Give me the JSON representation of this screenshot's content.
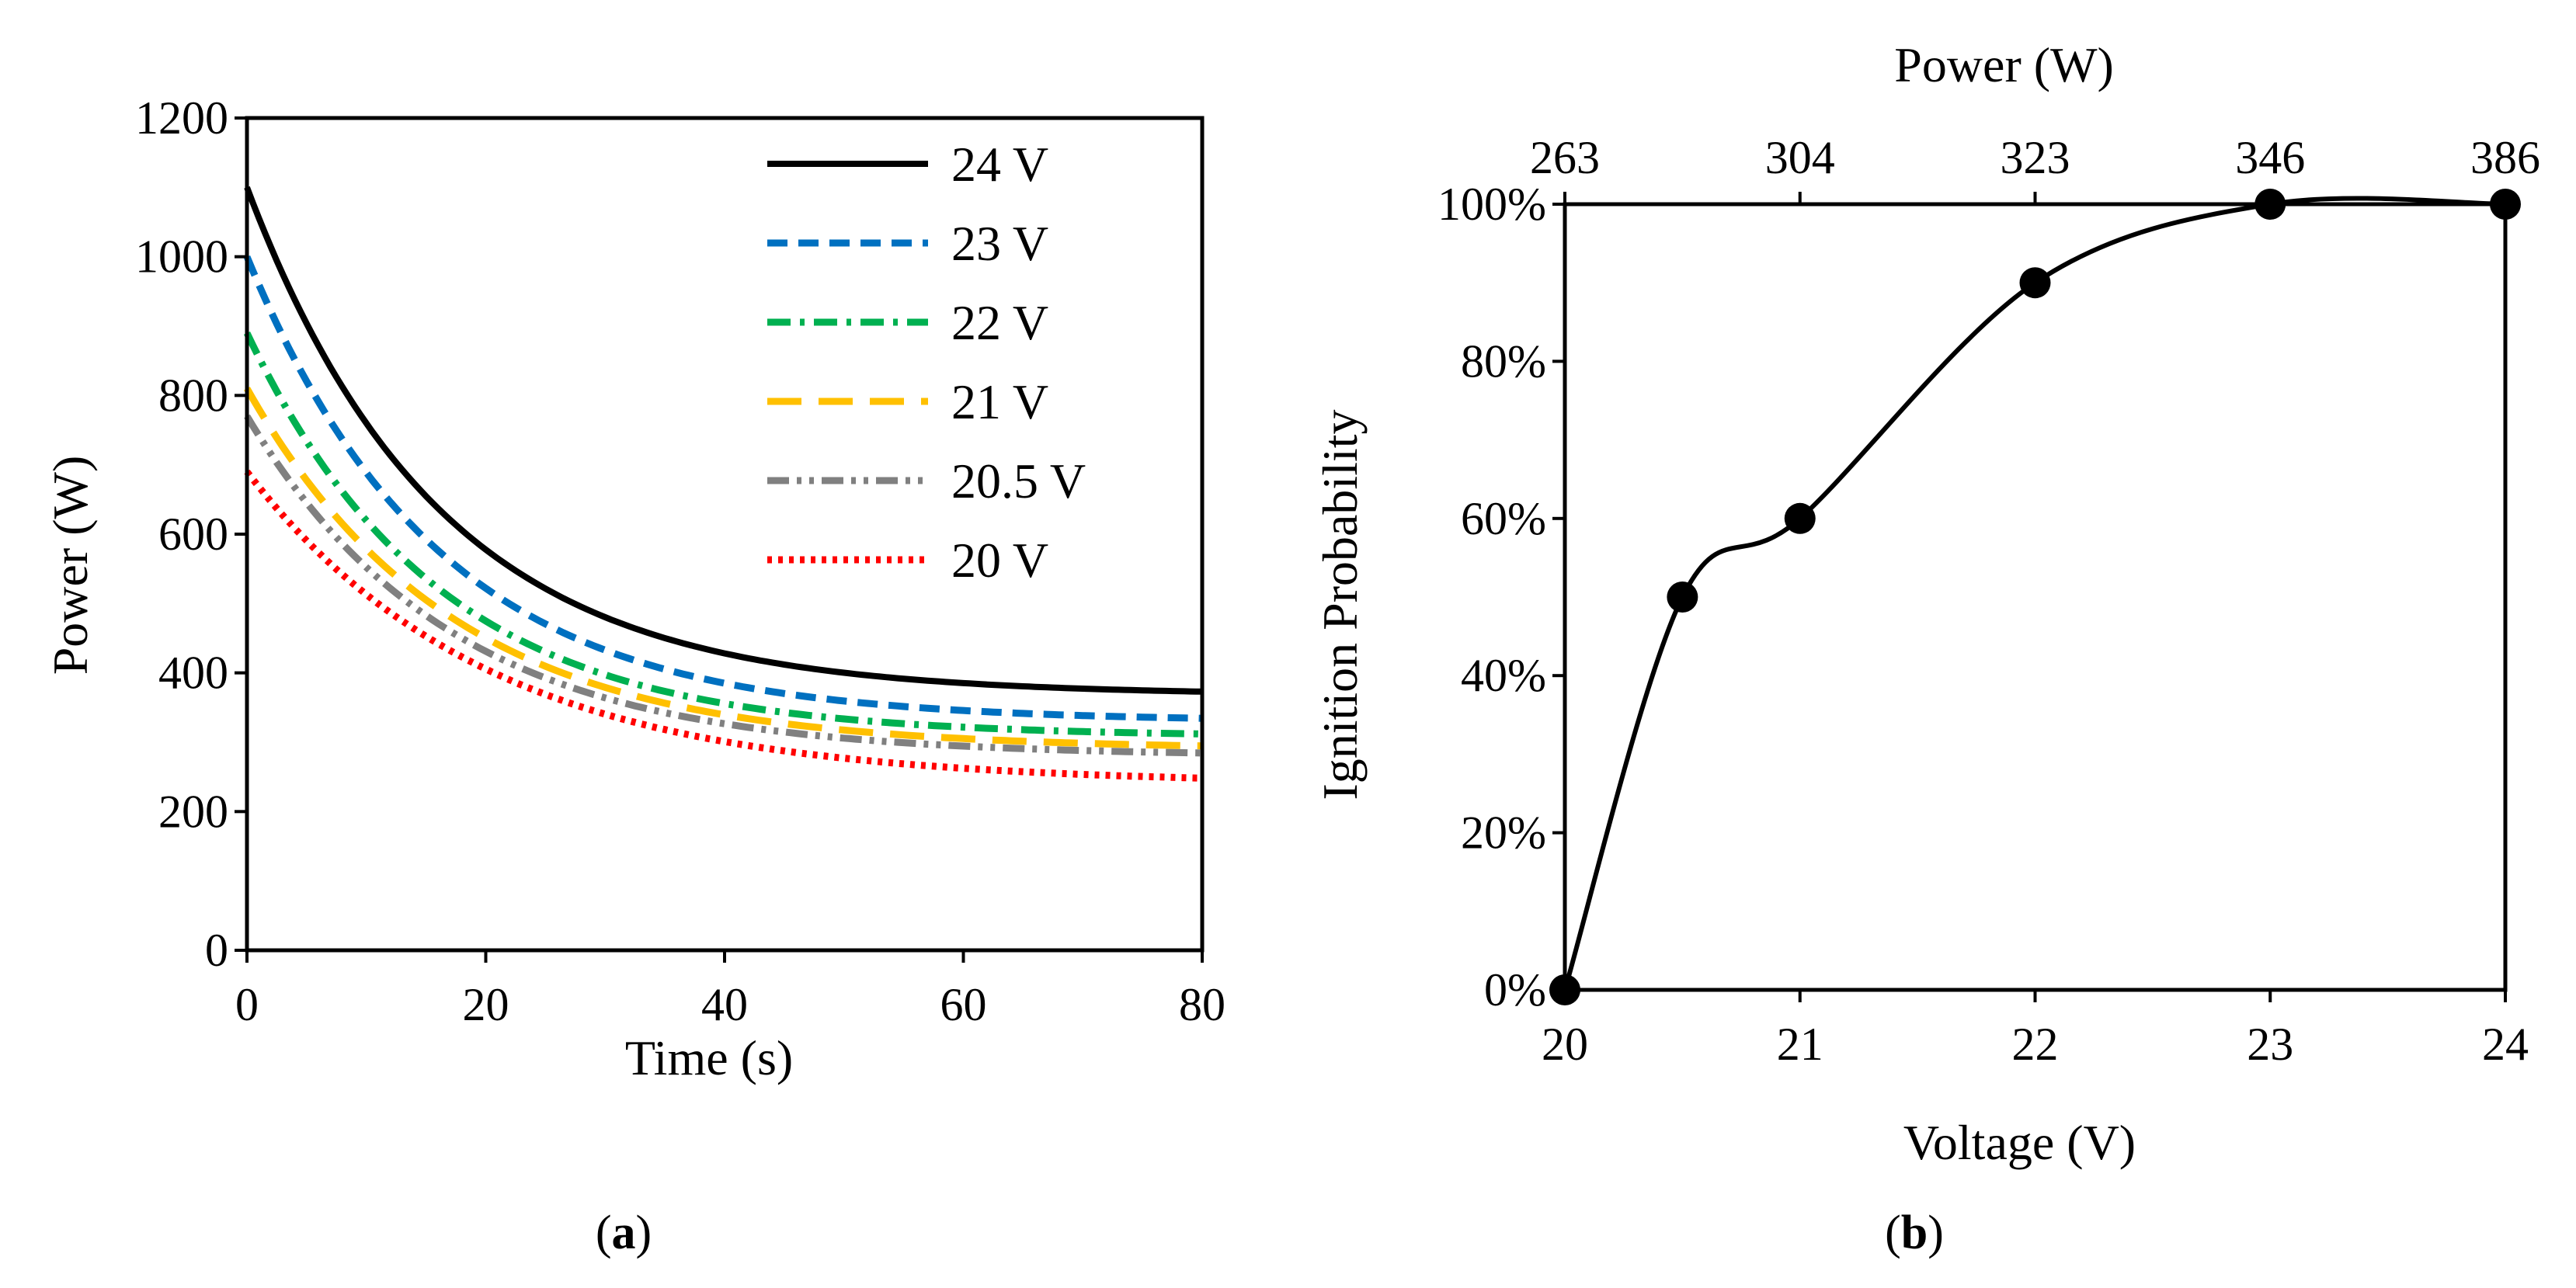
{
  "chart_data": [
    {
      "panel": "a",
      "type": "line",
      "caption": {
        "open": "(",
        "letter": "a",
        "close": ")"
      },
      "xlabel": "Time (s)",
      "ylabel": "Power  (W)",
      "xlim": [
        0,
        80
      ],
      "ylim": [
        0,
        1200
      ],
      "xticks": [
        0,
        20,
        40,
        60,
        80
      ],
      "yticks": [
        0,
        200,
        400,
        600,
        800,
        1000,
        1200
      ],
      "grid": false,
      "legend_position": "top-right",
      "model": "P(t) = Pinf + (P0 - Pinf) * exp(-t / tau)",
      "series": [
        {
          "name": "24 V",
          "color": "#000000",
          "style": "solid",
          "P0": 1100,
          "Pinf": 368,
          "tau": 16
        },
        {
          "name": "23 V",
          "color": "#0070C0",
          "style": "dash",
          "P0": 1000,
          "Pinf": 330,
          "tau": 16
        },
        {
          "name": "22 V",
          "color": "#00B050",
          "style": "dashdot",
          "P0": 890,
          "Pinf": 308,
          "tau": 16
        },
        {
          "name": "21 V",
          "color": "#FFC000",
          "style": "longdash",
          "P0": 810,
          "Pinf": 290,
          "tau": 17
        },
        {
          "name": "20.5 V",
          "color": "#808080",
          "style": "dashdotdot",
          "P0": 770,
          "Pinf": 280,
          "tau": 17
        },
        {
          "name": "20 V",
          "color": "#FF0000",
          "style": "dot",
          "P0": 690,
          "Pinf": 240,
          "tau": 20
        }
      ]
    },
    {
      "panel": "b",
      "type": "scatter",
      "caption": {
        "open": "(",
        "letter": "b",
        "close": ")"
      },
      "xlabel": "Voltage (V)",
      "ylabel": "Ignition Probability",
      "x2label": "Power (W)",
      "xlim": [
        20,
        24
      ],
      "ylim": [
        0,
        1
      ],
      "xticks": [
        20,
        21,
        22,
        23,
        24
      ],
      "yticks": [
        "0%",
        "20%",
        "40%",
        "60%",
        "80%",
        "100%"
      ],
      "x2ticks": [
        {
          "at": 20,
          "label": "263"
        },
        {
          "at": 21,
          "label": "304"
        },
        {
          "at": 22,
          "label": "323"
        },
        {
          "at": 23,
          "label": "346"
        },
        {
          "at": 24,
          "label": "386"
        }
      ],
      "grid": false,
      "series": [
        {
          "color": "#000000",
          "points": [
            {
              "x": 20,
              "y": 0.0
            },
            {
              "x": 20.5,
              "y": 0.5
            },
            {
              "x": 21,
              "y": 0.6
            },
            {
              "x": 22,
              "y": 0.9
            },
            {
              "x": 23,
              "y": 1.0
            },
            {
              "x": 24,
              "y": 1.0
            }
          ]
        }
      ]
    }
  ]
}
